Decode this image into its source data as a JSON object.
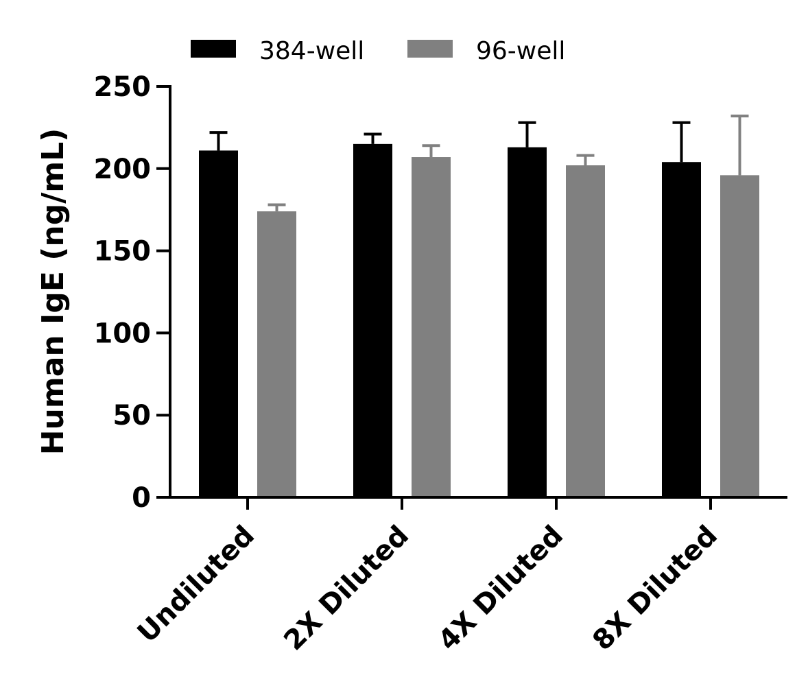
{
  "chart_data": {
    "type": "bar",
    "title": "",
    "xlabel": "",
    "ylabel": "Human IgE (ng/mL)",
    "ylim": [
      0,
      250
    ],
    "yticks": [
      0,
      50,
      100,
      150,
      200,
      250
    ],
    "categories": [
      "Undiluted",
      "2X Diluted",
      "4X Diluted",
      "8X Diluted"
    ],
    "series": [
      {
        "name": "384-well",
        "color": "#000000",
        "values": [
          211,
          215,
          213,
          204
        ],
        "error_upper": [
          11,
          6,
          15,
          24
        ]
      },
      {
        "name": "96-well",
        "color": "#808080",
        "values": [
          174,
          207,
          202,
          196
        ],
        "error_upper": [
          4,
          7,
          6,
          36
        ]
      }
    ],
    "legend_position": "top",
    "grid": false,
    "error_bars": "upper"
  }
}
